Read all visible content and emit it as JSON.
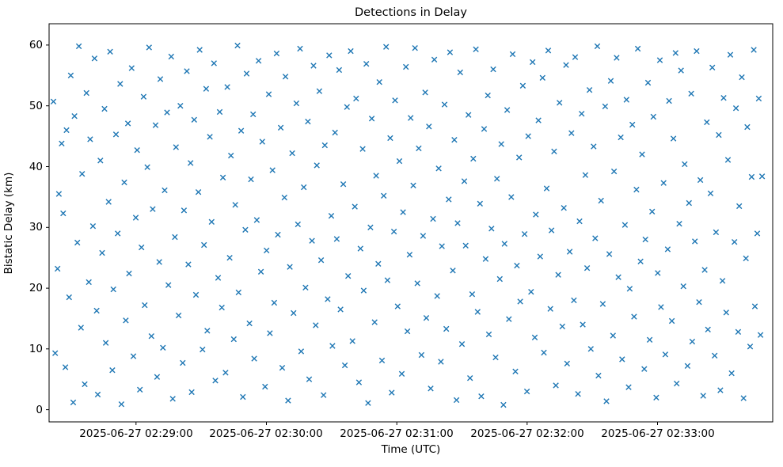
{
  "chart_data": {
    "type": "scatter",
    "title": "Detections in Delay",
    "xlabel": "Time (UTC)",
    "ylabel": "Bistatic Delay (km)",
    "legend": null,
    "grid": false,
    "marker": {
      "shape": "x",
      "color": "#1f77b4"
    },
    "x_time_origin": "2025-06-27 02:28:20",
    "x_unit": "seconds since x_time_origin",
    "x_range": [
      0,
      333
    ],
    "y_range": [
      -2,
      63.5
    ],
    "x_tick_positions": [
      40,
      100,
      160,
      220,
      280
    ],
    "x_tick_labels": [
      "2025-06-27 02:29:00",
      "2025-06-27 02:30:00",
      "2025-06-27 02:31:00",
      "2025-06-27 02:32:00",
      "2025-06-27 02:33:00"
    ],
    "y_ticks": [
      0,
      10,
      20,
      30,
      40,
      50,
      60
    ],
    "y_tick_labels": [
      "0",
      "10",
      "20",
      "30",
      "40",
      "50",
      "60"
    ],
    "points": [
      [
        2.0,
        50.7
      ],
      [
        2.8,
        9.3
      ],
      [
        3.9,
        23.2
      ],
      [
        4.5,
        35.5
      ],
      [
        5.8,
        43.8
      ],
      [
        6.5,
        32.3
      ],
      [
        7.5,
        7.0
      ],
      [
        8.0,
        46.0
      ],
      [
        9.2,
        18.5
      ],
      [
        10.0,
        55.0
      ],
      [
        11.1,
        1.2
      ],
      [
        11.7,
        48.3
      ],
      [
        13.0,
        27.5
      ],
      [
        13.7,
        59.8
      ],
      [
        14.7,
        13.5
      ],
      [
        15.2,
        38.8
      ],
      [
        16.4,
        4.2
      ],
      [
        17.2,
        52.1
      ],
      [
        18.3,
        21.0
      ],
      [
        18.9,
        44.5
      ],
      [
        20.2,
        30.2
      ],
      [
        20.9,
        57.8
      ],
      [
        21.9,
        16.3
      ],
      [
        22.4,
        2.5
      ],
      [
        23.6,
        41.0
      ],
      [
        24.4,
        25.8
      ],
      [
        25.5,
        49.5
      ],
      [
        26.1,
        11.0
      ],
      [
        27.4,
        34.2
      ],
      [
        28.1,
        58.9
      ],
      [
        29.1,
        6.5
      ],
      [
        29.6,
        19.8
      ],
      [
        30.8,
        45.3
      ],
      [
        31.6,
        29.0
      ],
      [
        32.7,
        53.6
      ],
      [
        33.3,
        0.9
      ],
      [
        34.6,
        37.4
      ],
      [
        35.3,
        14.7
      ],
      [
        36.3,
        47.1
      ],
      [
        36.8,
        22.4
      ],
      [
        38.0,
        56.2
      ],
      [
        38.8,
        8.8
      ],
      [
        39.9,
        31.6
      ],
      [
        40.5,
        42.7
      ],
      [
        41.8,
        3.3
      ],
      [
        42.5,
        26.7
      ],
      [
        43.5,
        51.5
      ],
      [
        44.0,
        17.2
      ],
      [
        45.2,
        39.9
      ],
      [
        46.0,
        59.6
      ],
      [
        47.1,
        12.1
      ],
      [
        47.7,
        33.0
      ],
      [
        49.0,
        46.8
      ],
      [
        49.7,
        5.4
      ],
      [
        50.7,
        24.3
      ],
      [
        51.2,
        54.4
      ],
      [
        52.4,
        10.2
      ],
      [
        53.2,
        36.1
      ],
      [
        54.3,
        48.9
      ],
      [
        54.9,
        20.5
      ],
      [
        56.2,
        58.1
      ],
      [
        56.9,
        1.8
      ],
      [
        57.9,
        28.4
      ],
      [
        58.4,
        43.2
      ],
      [
        59.6,
        15.5
      ],
      [
        60.4,
        50.0
      ],
      [
        61.5,
        7.7
      ],
      [
        62.1,
        32.8
      ],
      [
        63.4,
        55.7
      ],
      [
        64.1,
        23.9
      ],
      [
        65.1,
        40.6
      ],
      [
        65.6,
        2.9
      ],
      [
        66.8,
        47.7
      ],
      [
        67.6,
        18.9
      ],
      [
        68.7,
        35.8
      ],
      [
        69.3,
        59.2
      ],
      [
        70.6,
        9.9
      ],
      [
        71.3,
        27.1
      ],
      [
        72.3,
        52.8
      ],
      [
        72.8,
        13.0
      ],
      [
        74.0,
        44.9
      ],
      [
        74.8,
        30.9
      ],
      [
        75.9,
        57.0
      ],
      [
        76.5,
        4.8
      ],
      [
        77.8,
        21.7
      ],
      [
        78.5,
        49.0
      ],
      [
        79.5,
        16.8
      ],
      [
        80.0,
        38.2
      ],
      [
        81.2,
        6.1
      ],
      [
        82.0,
        53.1
      ],
      [
        83.1,
        25.0
      ],
      [
        83.7,
        41.8
      ],
      [
        85.0,
        11.6
      ],
      [
        85.7,
        33.7
      ],
      [
        86.7,
        59.9
      ],
      [
        87.2,
        19.3
      ],
      [
        88.4,
        45.9
      ],
      [
        89.2,
        2.1
      ],
      [
        90.3,
        29.6
      ],
      [
        90.9,
        55.3
      ],
      [
        92.2,
        14.2
      ],
      [
        92.9,
        37.9
      ],
      [
        93.9,
        48.6
      ],
      [
        94.4,
        8.4
      ],
      [
        95.6,
        31.2
      ],
      [
        96.4,
        57.4
      ],
      [
        97.5,
        22.7
      ],
      [
        98.1,
        44.1
      ],
      [
        99.4,
        3.8
      ],
      [
        100.1,
        26.2
      ],
      [
        101.1,
        51.9
      ],
      [
        101.6,
        12.6
      ],
      [
        102.8,
        39.4
      ],
      [
        103.6,
        17.6
      ],
      [
        104.7,
        58.6
      ],
      [
        105.3,
        28.8
      ],
      [
        106.6,
        46.4
      ],
      [
        107.3,
        6.9
      ],
      [
        108.3,
        34.9
      ],
      [
        108.8,
        54.8
      ],
      [
        110.0,
        1.5
      ],
      [
        110.8,
        23.5
      ],
      [
        111.9,
        42.2
      ],
      [
        112.5,
        15.9
      ],
      [
        113.8,
        50.4
      ],
      [
        114.5,
        30.5
      ],
      [
        115.5,
        59.4
      ],
      [
        116.0,
        9.6
      ],
      [
        117.2,
        36.6
      ],
      [
        118.0,
        20.1
      ],
      [
        119.1,
        47.4
      ],
      [
        119.7,
        5.0
      ],
      [
        121.0,
        27.8
      ],
      [
        121.7,
        56.6
      ],
      [
        122.7,
        13.9
      ],
      [
        123.2,
        40.2
      ],
      [
        124.4,
        52.4
      ],
      [
        125.2,
        24.6
      ],
      [
        126.3,
        2.4
      ],
      [
        126.9,
        43.5
      ],
      [
        128.2,
        18.2
      ],
      [
        128.9,
        58.3
      ],
      [
        129.9,
        31.9
      ],
      [
        130.4,
        10.5
      ],
      [
        131.6,
        45.6
      ],
      [
        132.4,
        28.1
      ],
      [
        133.5,
        55.9
      ],
      [
        134.1,
        16.5
      ],
      [
        135.4,
        37.1
      ],
      [
        136.1,
        7.3
      ],
      [
        137.1,
        49.8
      ],
      [
        137.6,
        22.0
      ],
      [
        138.8,
        59.0
      ],
      [
        139.6,
        11.3
      ],
      [
        140.7,
        33.4
      ],
      [
        141.3,
        51.2
      ],
      [
        142.6,
        4.5
      ],
      [
        143.3,
        26.5
      ],
      [
        144.3,
        42.9
      ],
      [
        144.8,
        19.6
      ],
      [
        146.0,
        56.9
      ],
      [
        146.8,
        1.1
      ],
      [
        147.9,
        30.0
      ],
      [
        148.5,
        47.9
      ],
      [
        149.8,
        14.4
      ],
      [
        150.5,
        38.5
      ],
      [
        151.5,
        24.0
      ],
      [
        152.0,
        53.9
      ],
      [
        153.2,
        8.1
      ],
      [
        154.0,
        35.2
      ],
      [
        155.1,
        59.7
      ],
      [
        155.7,
        21.3
      ],
      [
        157.0,
        44.7
      ],
      [
        157.7,
        2.8
      ],
      [
        158.7,
        29.3
      ],
      [
        159.2,
        50.9
      ],
      [
        160.4,
        17.0
      ],
      [
        161.2,
        40.9
      ],
      [
        162.3,
        5.9
      ],
      [
        162.9,
        32.5
      ],
      [
        164.2,
        56.4
      ],
      [
        164.9,
        12.9
      ],
      [
        165.9,
        25.5
      ],
      [
        166.4,
        48.0
      ],
      [
        167.6,
        36.9
      ],
      [
        168.4,
        59.5
      ],
      [
        169.5,
        20.8
      ],
      [
        170.1,
        43.0
      ],
      [
        171.4,
        9.0
      ],
      [
        172.1,
        28.6
      ],
      [
        173.1,
        52.2
      ],
      [
        173.6,
        15.1
      ],
      [
        174.8,
        46.6
      ],
      [
        175.6,
        3.5
      ],
      [
        176.7,
        31.4
      ],
      [
        177.3,
        57.6
      ],
      [
        178.6,
        18.7
      ],
      [
        179.3,
        39.7
      ],
      [
        180.3,
        7.9
      ],
      [
        180.8,
        26.9
      ],
      [
        182.0,
        50.2
      ],
      [
        182.8,
        13.3
      ],
      [
        183.9,
        34.6
      ],
      [
        184.5,
        58.8
      ],
      [
        185.8,
        22.9
      ],
      [
        186.5,
        44.4
      ],
      [
        187.5,
        1.6
      ],
      [
        188.0,
        30.7
      ],
      [
        189.2,
        55.5
      ],
      [
        190.0,
        10.8
      ],
      [
        191.1,
        37.6
      ],
      [
        191.7,
        27.0
      ],
      [
        193.0,
        48.5
      ],
      [
        193.7,
        5.2
      ],
      [
        194.7,
        19.0
      ],
      [
        195.2,
        41.3
      ],
      [
        196.4,
        59.3
      ],
      [
        197.2,
        16.1
      ],
      [
        198.3,
        33.9
      ],
      [
        198.9,
        2.2
      ],
      [
        200.2,
        46.2
      ],
      [
        200.9,
        24.8
      ],
      [
        201.9,
        51.7
      ],
      [
        202.4,
        12.4
      ],
      [
        203.6,
        29.8
      ],
      [
        204.4,
        56.0
      ],
      [
        205.5,
        8.6
      ],
      [
        206.1,
        38.0
      ],
      [
        207.4,
        21.5
      ],
      [
        208.1,
        43.7
      ],
      [
        209.1,
        0.8
      ],
      [
        209.6,
        27.3
      ],
      [
        210.8,
        49.3
      ],
      [
        211.6,
        14.9
      ],
      [
        212.7,
        35.0
      ],
      [
        213.3,
        58.5
      ],
      [
        214.6,
        6.3
      ],
      [
        215.3,
        23.7
      ],
      [
        216.3,
        41.5
      ],
      [
        216.8,
        17.8
      ],
      [
        218.0,
        53.3
      ],
      [
        218.8,
        28.9
      ],
      [
        219.9,
        3.0
      ],
      [
        220.5,
        45.0
      ],
      [
        221.8,
        19.4
      ],
      [
        222.5,
        57.2
      ],
      [
        223.5,
        11.9
      ],
      [
        224.0,
        32.1
      ],
      [
        225.2,
        47.6
      ],
      [
        226.0,
        25.2
      ],
      [
        227.1,
        54.6
      ],
      [
        227.7,
        9.4
      ],
      [
        229.0,
        36.4
      ],
      [
        229.7,
        59.1
      ],
      [
        230.7,
        16.6
      ],
      [
        231.2,
        29.5
      ],
      [
        232.4,
        42.5
      ],
      [
        233.2,
        4.0
      ],
      [
        234.3,
        22.2
      ],
      [
        234.9,
        50.5
      ],
      [
        236.2,
        13.7
      ],
      [
        236.9,
        33.2
      ],
      [
        237.9,
        56.7
      ],
      [
        238.4,
        7.6
      ],
      [
        239.6,
        26.0
      ],
      [
        240.4,
        45.5
      ],
      [
        241.5,
        18.0
      ],
      [
        242.1,
        58.0
      ],
      [
        243.4,
        2.6
      ],
      [
        244.1,
        31.0
      ],
      [
        245.1,
        48.7
      ],
      [
        245.6,
        14.0
      ],
      [
        246.8,
        38.6
      ],
      [
        247.6,
        23.3
      ],
      [
        248.7,
        52.6
      ],
      [
        249.3,
        10.0
      ],
      [
        250.6,
        43.3
      ],
      [
        251.3,
        28.2
      ],
      [
        252.3,
        59.8
      ],
      [
        252.8,
        5.6
      ],
      [
        254.0,
        34.4
      ],
      [
        254.8,
        17.4
      ],
      [
        255.9,
        49.9
      ],
      [
        256.5,
        1.4
      ],
      [
        257.8,
        25.6
      ],
      [
        258.5,
        54.1
      ],
      [
        259.5,
        12.2
      ],
      [
        260.0,
        39.2
      ],
      [
        261.2,
        57.9
      ],
      [
        262.0,
        21.8
      ],
      [
        263.1,
        44.8
      ],
      [
        263.7,
        8.3
      ],
      [
        265.0,
        30.4
      ],
      [
        265.7,
        51.0
      ],
      [
        266.7,
        3.7
      ],
      [
        267.2,
        19.9
      ],
      [
        268.4,
        46.9
      ],
      [
        269.2,
        15.3
      ],
      [
        270.3,
        36.2
      ],
      [
        270.9,
        59.4
      ],
      [
        272.2,
        24.4
      ],
      [
        272.9,
        42.0
      ],
      [
        273.9,
        6.7
      ],
      [
        274.4,
        28.0
      ],
      [
        275.6,
        53.8
      ],
      [
        276.4,
        11.5
      ],
      [
        277.5,
        32.6
      ],
      [
        278.1,
        48.2
      ],
      [
        279.4,
        2.0
      ],
      [
        280.1,
        22.5
      ],
      [
        281.1,
        57.5
      ],
      [
        281.6,
        16.9
      ],
      [
        282.8,
        37.3
      ],
      [
        283.6,
        9.1
      ],
      [
        284.7,
        26.4
      ],
      [
        285.3,
        50.8
      ],
      [
        286.6,
        14.6
      ],
      [
        287.3,
        44.6
      ],
      [
        288.3,
        58.7
      ],
      [
        288.8,
        4.3
      ],
      [
        290.0,
        30.6
      ],
      [
        290.8,
        55.8
      ],
      [
        291.9,
        20.3
      ],
      [
        292.5,
        40.4
      ],
      [
        293.8,
        7.2
      ],
      [
        294.5,
        34.0
      ],
      [
        295.5,
        52.0
      ],
      [
        296.0,
        11.2
      ],
      [
        297.2,
        27.7
      ],
      [
        298.0,
        59.0
      ],
      [
        299.1,
        17.7
      ],
      [
        299.7,
        37.8
      ],
      [
        301.0,
        2.3
      ],
      [
        301.7,
        23.0
      ],
      [
        302.7,
        47.3
      ],
      [
        303.2,
        13.2
      ],
      [
        304.4,
        35.6
      ],
      [
        305.2,
        56.3
      ],
      [
        306.3,
        8.9
      ],
      [
        306.9,
        29.2
      ],
      [
        308.2,
        45.2
      ],
      [
        308.9,
        3.2
      ],
      [
        309.9,
        21.2
      ],
      [
        310.4,
        51.3
      ],
      [
        311.6,
        16.0
      ],
      [
        312.4,
        41.1
      ],
      [
        313.5,
        58.4
      ],
      [
        314.1,
        6.0
      ],
      [
        315.4,
        27.6
      ],
      [
        316.1,
        49.6
      ],
      [
        317.1,
        12.8
      ],
      [
        317.6,
        33.5
      ],
      [
        318.8,
        54.7
      ],
      [
        319.6,
        1.9
      ],
      [
        320.7,
        24.9
      ],
      [
        321.3,
        46.5
      ],
      [
        322.6,
        10.4
      ],
      [
        323.3,
        38.3
      ],
      [
        324.3,
        59.2
      ],
      [
        324.8,
        17.0
      ],
      [
        325.9,
        29.0
      ],
      [
        326.6,
        51.2
      ],
      [
        327.4,
        12.3
      ],
      [
        328.1,
        38.4
      ]
    ]
  }
}
